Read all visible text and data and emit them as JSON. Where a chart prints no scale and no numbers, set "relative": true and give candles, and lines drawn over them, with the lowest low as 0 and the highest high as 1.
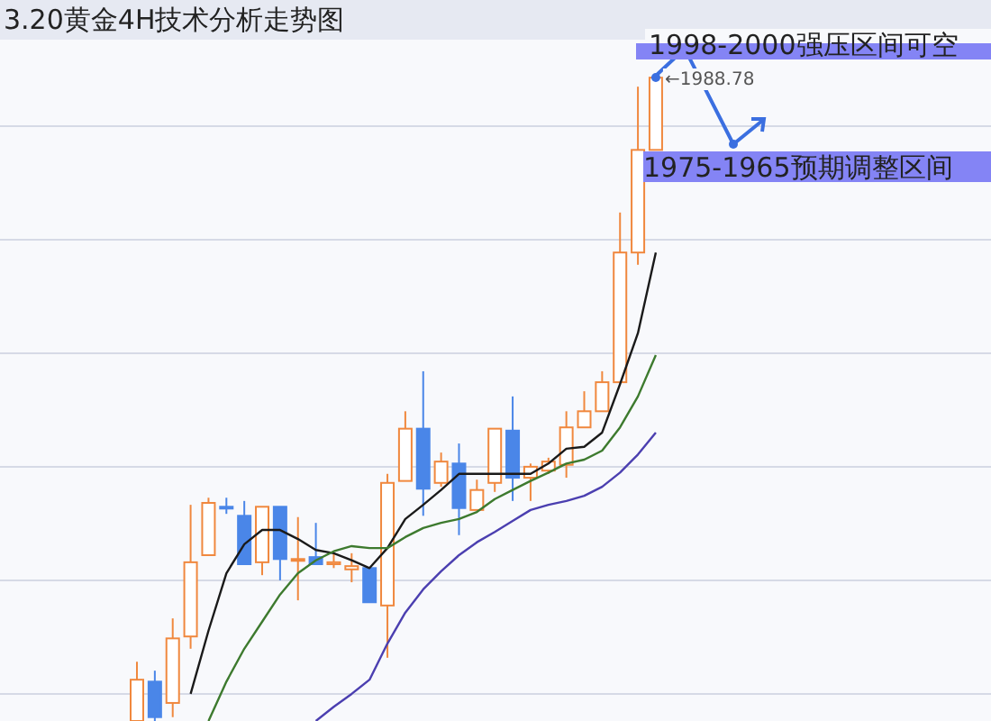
{
  "chart_data": {
    "type": "candlestick",
    "title": "3.20黄金4H技术分析走势图",
    "relative": true,
    "grid": "y",
    "categories": [
      null,
      null,
      null,
      null,
      null,
      null,
      null,
      null,
      null,
      null,
      null,
      null,
      null,
      null,
      null,
      null,
      null,
      null,
      null,
      null,
      null,
      null,
      null,
      null,
      null,
      null,
      null,
      null,
      null,
      null
    ],
    "colors": [
      "#f0883e",
      "#4a86e8",
      "#f0883e",
      "#f0883e",
      "#f0883e",
      "#4a86e8",
      "#4a86e8",
      "#f0883e",
      "#4a86e8",
      "#f0883e",
      "#4a86e8",
      "#f0883e",
      "#f0883e",
      "#4a86e8",
      "#f0883e",
      "#f0883e",
      "#4a86e8",
      "#f0883e",
      "#4a86e8",
      "#f0883e",
      "#f0883e",
      "#4a86e8",
      "#f0883e",
      "#f0883e",
      "#f0883e",
      "#f0883e",
      "#f0883e",
      "#f0883e",
      "#f0883e",
      "#f0883e"
    ],
    "ohlc": [
      [
        0,
        0.092,
        0,
        0.064
      ],
      [
        0.061,
        0.078,
        0,
        0.006
      ],
      [
        0.028,
        0.159,
        0.006,
        0.128
      ],
      [
        0.131,
        0.335,
        0.112,
        0.246
      ],
      [
        0.257,
        0.346,
        0.257,
        0.338
      ],
      [
        0.332,
        0.346,
        0.321,
        0.33
      ],
      [
        0.318,
        0.341,
        0.243,
        0.243
      ],
      [
        0.246,
        0.332,
        0.226,
        0.332
      ],
      [
        0.332,
        0.332,
        0.218,
        0.251
      ],
      [
        0.249,
        0.316,
        0.187,
        0.251
      ],
      [
        0.254,
        0.307,
        0.243,
        0.243
      ],
      [
        0.243,
        0.26,
        0.237,
        0.246
      ],
      [
        0.235,
        0.26,
        0.215,
        0.24
      ],
      [
        0.237,
        0.237,
        0.184,
        0.184
      ],
      [
        0.179,
        0.383,
        0.098,
        0.369
      ],
      [
        0.372,
        0.48,
        0.372,
        0.453
      ],
      [
        0.453,
        0.542,
        0.318,
        0.36
      ],
      [
        0.369,
        0.416,
        0.363,
        0.402
      ],
      [
        0.399,
        0.43,
        0.288,
        0.33
      ],
      [
        0.327,
        0.374,
        0.327,
        0.358
      ],
      [
        0.369,
        0.453,
        0.355,
        0.453
      ],
      [
        0.45,
        0.503,
        0.341,
        0.377
      ],
      [
        0.377,
        0.399,
        0.341,
        0.394
      ],
      [
        0.388,
        0.408,
        0.383,
        0.402
      ],
      [
        0.397,
        0.48,
        0.377,
        0.455
      ],
      [
        0.455,
        0.511,
        0.455,
        0.48
      ],
      [
        0.48,
        0.542,
        0.48,
        0.525
      ],
      [
        0.525,
        0.788,
        0.525,
        0.726
      ],
      [
        0.726,
        0.983,
        0.707,
        0.885
      ],
      [
        0.885,
        1,
        0.885,
        0.997
      ]
    ],
    "series": [
      {
        "type": "line",
        "color": "#1a1a1a",
        "values": [
          null,
          null,
          null,
          0.042,
          0.14,
          0.229,
          0.274,
          0.296,
          0.296,
          0.282,
          0.265,
          0.26,
          0.249,
          0.237,
          0.268,
          0.313,
          0.335,
          0.358,
          0.383,
          0.383,
          0.383,
          0.383,
          0.383,
          0.399,
          0.422,
          0.425,
          0.447,
          0.522,
          0.601,
          0.726
        ]
      },
      {
        "type": "line",
        "color": "#3d7a2e",
        "values": [
          null,
          null,
          null,
          null,
          0,
          0.061,
          0.112,
          0.154,
          0.196,
          0.229,
          0.249,
          0.263,
          0.271,
          0.268,
          0.268,
          0.285,
          0.299,
          0.307,
          0.313,
          0.324,
          0.344,
          0.358,
          0.372,
          0.385,
          0.399,
          0.405,
          0.419,
          0.455,
          0.503,
          0.567
        ]
      },
      {
        "type": "line",
        "color": "#4b3fb0",
        "values": [
          null,
          null,
          null,
          null,
          null,
          null,
          null,
          null,
          null,
          null,
          0,
          0.022,
          0.042,
          0.064,
          0.12,
          0.168,
          0.204,
          0.232,
          0.257,
          0.277,
          0.293,
          0.31,
          0.327,
          0.335,
          0.341,
          0.349,
          0.363,
          0.385,
          0.413,
          0.447
        ]
      }
    ],
    "annotations": [
      "1998-2000强压区间可空",
      "1975-1965预期调整区间",
      "←1988.78"
    ]
  }
}
